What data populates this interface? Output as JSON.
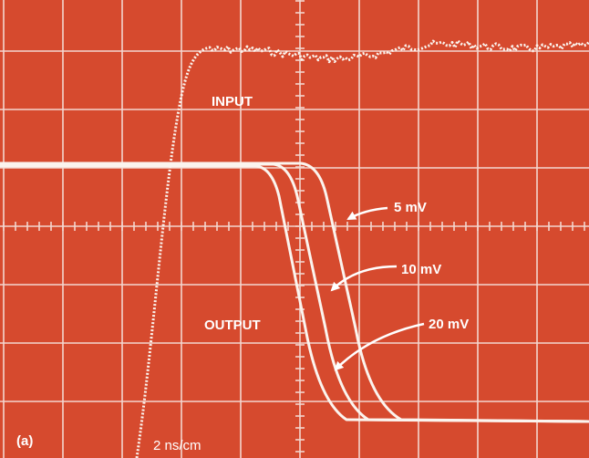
{
  "labels": {
    "input": "INPUT",
    "output": "OUTPUT",
    "curve_5": "5 mV",
    "curve_10": "10 mV",
    "curve_20": "20 mV",
    "panel": "(a)",
    "timebase": "2 ns/cm"
  }
}
